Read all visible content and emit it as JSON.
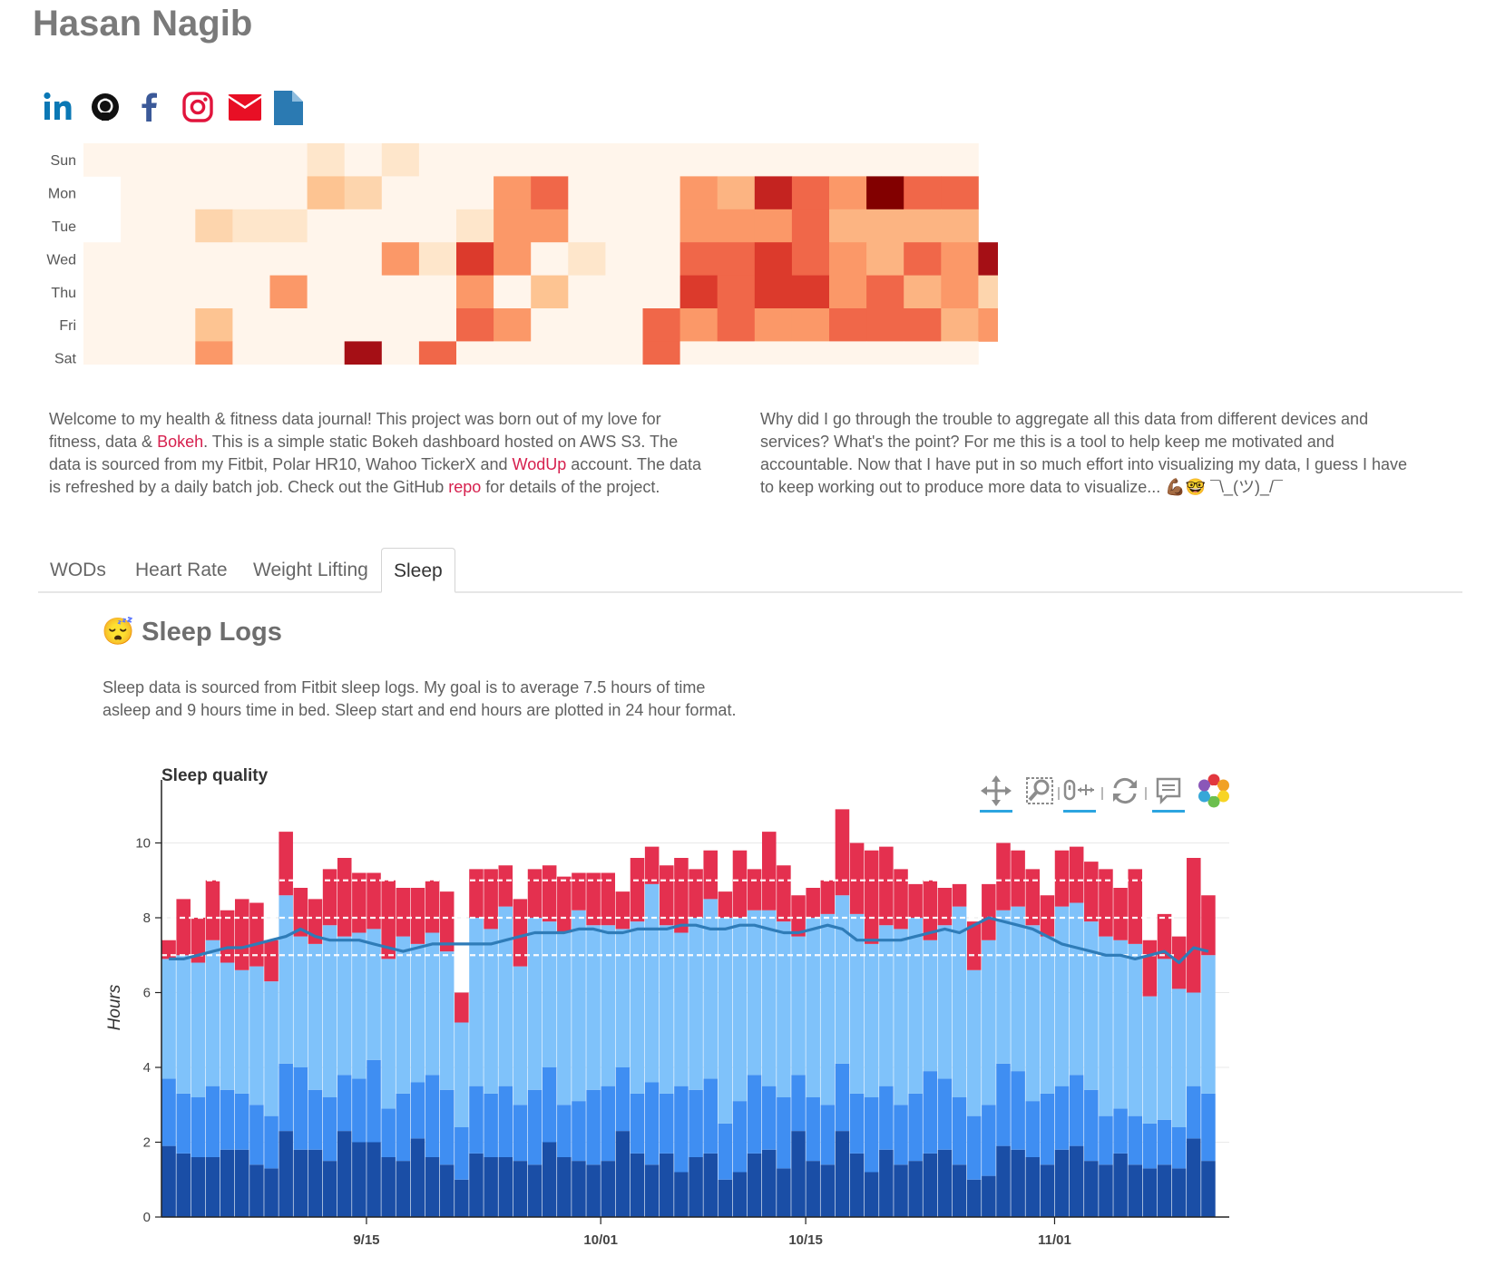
{
  "header": {
    "name": "Hasan Nagib"
  },
  "social": [
    "linkedin-icon",
    "github-icon",
    "facebook-icon",
    "instagram-icon",
    "email-icon",
    "document-icon"
  ],
  "heatmap": {
    "days": [
      "Sun",
      "Mon",
      "Tue",
      "Wed",
      "Thu",
      "Fri",
      "Sat"
    ],
    "levels": [
      [
        0,
        0,
        0,
        0,
        0,
        0,
        1,
        0,
        1,
        0,
        0,
        0,
        0,
        0,
        0,
        0,
        0,
        0,
        0,
        0,
        0,
        0,
        0,
        0,
        null
      ],
      [
        null,
        0,
        0,
        0,
        0,
        0,
        3,
        2,
        0,
        0,
        0,
        5,
        6,
        0,
        0,
        0,
        5,
        4,
        8,
        6,
        5,
        10,
        6,
        6
      ],
      [
        null,
        0,
        0,
        2,
        1,
        1,
        0,
        0,
        0,
        0,
        1,
        5,
        5,
        0,
        0,
        0,
        5,
        5,
        5,
        6,
        4,
        4,
        4,
        4
      ],
      [
        0,
        0,
        0,
        0,
        0,
        0,
        0,
        0,
        5,
        1,
        7,
        5,
        0,
        1,
        0,
        0,
        6,
        6,
        7,
        6,
        5,
        4,
        6,
        5,
        9
      ],
      [
        0,
        0,
        0,
        0,
        0,
        5,
        0,
        0,
        0,
        0,
        5,
        0,
        3,
        0,
        0,
        0,
        7,
        6,
        7,
        7,
        5,
        6,
        4,
        5,
        2
      ],
      [
        0,
        0,
        0,
        3,
        0,
        0,
        0,
        0,
        0,
        0,
        6,
        5,
        0,
        0,
        0,
        6,
        5,
        6,
        5,
        5,
        6,
        6,
        6,
        4,
        5
      ],
      [
        0,
        0,
        0,
        5,
        0,
        0,
        0,
        9,
        0,
        6,
        0,
        0,
        0,
        0,
        0,
        6,
        0,
        0,
        0,
        0,
        0,
        0,
        0,
        0,
        null
      ]
    ],
    "palette": [
      "#fff5eb",
      "#fee6cb",
      "#fdd5ad",
      "#fdc492",
      "#fcb482",
      "#fb9868",
      "#f06749",
      "#dc3a2c",
      "#c42320",
      "#a50f15",
      "#820000"
    ]
  },
  "intro": {
    "left_parts": [
      "Welcome to my health & fitness data journal! This project was born out of my love for fitness, data & ",
      "Bokeh",
      ". This is a simple static Bokeh dashboard hosted on AWS S3. The data is sourced from my Fitbit, Polar HR10, Wahoo TickerX and ",
      "WodUp",
      " account. The data is refreshed by a daily batch job. Check out the GitHub ",
      "repo",
      " for details of the project."
    ],
    "right": "Why did I go through the trouble to aggregate all this data from different devices and services? What's the point? For me this is a tool to help keep me motivated and accountable. Now that I have put in so much effort into visualizing my data, I guess I have to keep working out to produce more data to visualize... 💪🏾🤓 ¯\\_(ツ)_/¯"
  },
  "tabs": [
    {
      "label": "WODs",
      "active": false
    },
    {
      "label": "Heart Rate",
      "active": false
    },
    {
      "label": "Weight Lifting",
      "active": false
    },
    {
      "label": "Sleep",
      "active": true
    }
  ],
  "sleep": {
    "title": "😴 Sleep Logs",
    "description": "Sleep data is sourced from Fitbit sleep logs. My goal is to average 7.5 hours of time asleep and 9 hours time in bed. Sleep start and end hours are plotted in 24 hour format."
  },
  "toolbar": [
    "pan-icon",
    "box-zoom-icon",
    "wheel-zoom-icon",
    "reset-icon",
    "hover-icon",
    "bokeh-logo-icon"
  ],
  "chart_data": {
    "type": "bar",
    "title": "Sleep quality",
    "ylabel": "Hours",
    "xlabel": "",
    "ylim": [
      0,
      11.2
    ],
    "yticks": [
      0,
      2,
      4,
      6,
      8,
      10
    ],
    "x_start": "2018-09-01",
    "x_ticks": [
      {
        "label": "9/15",
        "date": "2018-09-15"
      },
      {
        "label": "10/01",
        "date": "2018-10-01"
      },
      {
        "label": "10/15",
        "date": "2018-10-15"
      },
      {
        "label": "11/01",
        "date": "2018-11-01"
      }
    ],
    "colors": {
      "deep": "#1a4ea6",
      "light": "#3f8ef2",
      "rem": "#7fc2fa",
      "awake": "#e4304f",
      "avg_line": "#2f7cb8"
    },
    "reference_lines": [
      7,
      8,
      9
    ],
    "deep": [
      1.9,
      1.7,
      1.6,
      1.6,
      1.8,
      1.8,
      1.4,
      1.3,
      2.3,
      1.8,
      1.8,
      1.5,
      2.3,
      2.0,
      2.0,
      1.6,
      1.5,
      2.1,
      1.6,
      1.4,
      1.0,
      1.7,
      1.6,
      1.6,
      1.5,
      1.4,
      2.0,
      1.6,
      1.5,
      1.4,
      1.5,
      2.3,
      1.7,
      1.4,
      1.7,
      1.2,
      1.6,
      1.7,
      1.0,
      1.2,
      1.7,
      1.8,
      1.3,
      2.3,
      1.5,
      1.4,
      2.3,
      1.7,
      1.2,
      1.8,
      1.4,
      1.5,
      1.7,
      1.8,
      1.4,
      1.0,
      1.1,
      1.9,
      1.8,
      1.6,
      1.4,
      1.8,
      1.9,
      1.5,
      1.4,
      1.7,
      1.4,
      1.3,
      1.4,
      1.3,
      2.1,
      1.5
    ],
    "light": [
      1.8,
      1.6,
      1.6,
      1.9,
      1.6,
      1.5,
      1.6,
      1.4,
      1.8,
      2.2,
      1.6,
      1.7,
      1.5,
      1.7,
      2.2,
      1.3,
      1.8,
      1.5,
      2.2,
      2.0,
      1.4,
      1.8,
      1.7,
      1.9,
      1.5,
      2.0,
      2.0,
      1.4,
      1.6,
      2.0,
      2.0,
      1.7,
      1.6,
      2.2,
      1.6,
      2.3,
      1.8,
      2.0,
      1.5,
      1.9,
      2.1,
      1.7,
      1.9,
      1.5,
      1.7,
      1.6,
      1.8,
      1.6,
      2.0,
      1.7,
      1.6,
      1.8,
      2.2,
      1.9,
      1.8,
      1.7,
      1.9,
      2.2,
      2.1,
      1.5,
      1.9,
      1.7,
      1.9,
      1.9,
      1.3,
      1.2,
      1.3,
      1.2,
      1.2,
      1.1,
      1.4,
      1.8
    ],
    "rem": [
      3.2,
      3.7,
      3.6,
      3.9,
      3.4,
      3.3,
      3.7,
      3.6,
      4.5,
      3.5,
      3.9,
      4.6,
      3.7,
      3.9,
      3.5,
      4.0,
      4.2,
      3.7,
      3.8,
      3.7,
      2.8,
      4.5,
      4.4,
      4.8,
      3.7,
      4.6,
      3.9,
      4.6,
      5.1,
      4.4,
      4.3,
      3.7,
      4.6,
      5.3,
      4.5,
      4.1,
      4.6,
      4.8,
      5.5,
      4.9,
      4.4,
      4.7,
      4.7,
      3.7,
      4.8,
      5.1,
      4.5,
      4.8,
      4.1,
      4.3,
      4.7,
      4.7,
      3.5,
      4.1,
      5.1,
      3.9,
      4.4,
      4.1,
      4.4,
      4.7,
      4.2,
      4.8,
      4.6,
      4.5,
      4.8,
      4.5,
      4.6,
      3.4,
      4.3,
      3.7,
      2.5,
      3.7
    ],
    "awake": [
      0.5,
      1.5,
      1.2,
      1.6,
      1.4,
      1.9,
      1.7,
      1.1,
      1.7,
      1.3,
      1.2,
      1.5,
      2.1,
      1.6,
      1.5,
      2.1,
      1.3,
      1.5,
      1.4,
      1.6,
      0.8,
      1.3,
      1.6,
      1.1,
      1.8,
      1.3,
      1.5,
      1.5,
      1.0,
      1.4,
      1.4,
      1.0,
      1.7,
      1.0,
      1.6,
      2.0,
      1.3,
      1.3,
      0.7,
      1.8,
      1.1,
      2.1,
      1.5,
      1.1,
      0.8,
      0.9,
      2.3,
      1.9,
      2.5,
      2.1,
      1.6,
      0.9,
      1.6,
      1.0,
      0.6,
      1.3,
      1.5,
      1.8,
      1.5,
      1.5,
      1.1,
      1.5,
      1.5,
      1.6,
      1.8,
      1.4,
      2.0,
      1.5,
      1.2,
      1.4,
      3.6,
      1.6
    ],
    "avg": [
      6.9,
      6.9,
      7.0,
      7.1,
      7.2,
      7.2,
      7.3,
      7.4,
      7.5,
      7.7,
      7.5,
      7.4,
      7.4,
      7.4,
      7.3,
      7.2,
      7.1,
      7.2,
      7.3,
      7.3,
      7.3,
      7.3,
      7.3,
      7.4,
      7.5,
      7.6,
      7.6,
      7.6,
      7.7,
      7.7,
      7.6,
      7.6,
      7.7,
      7.7,
      7.7,
      7.8,
      7.8,
      7.7,
      7.7,
      7.8,
      7.8,
      7.7,
      7.6,
      7.6,
      7.7,
      7.8,
      7.7,
      7.4,
      7.4,
      7.4,
      7.4,
      7.5,
      7.6,
      7.7,
      7.6,
      7.8,
      8.0,
      7.9,
      7.8,
      7.7,
      7.5,
      7.3,
      7.2,
      7.1,
      7.0,
      7.0,
      6.9,
      7.0,
      7.1,
      6.8,
      7.2,
      7.1
    ]
  }
}
